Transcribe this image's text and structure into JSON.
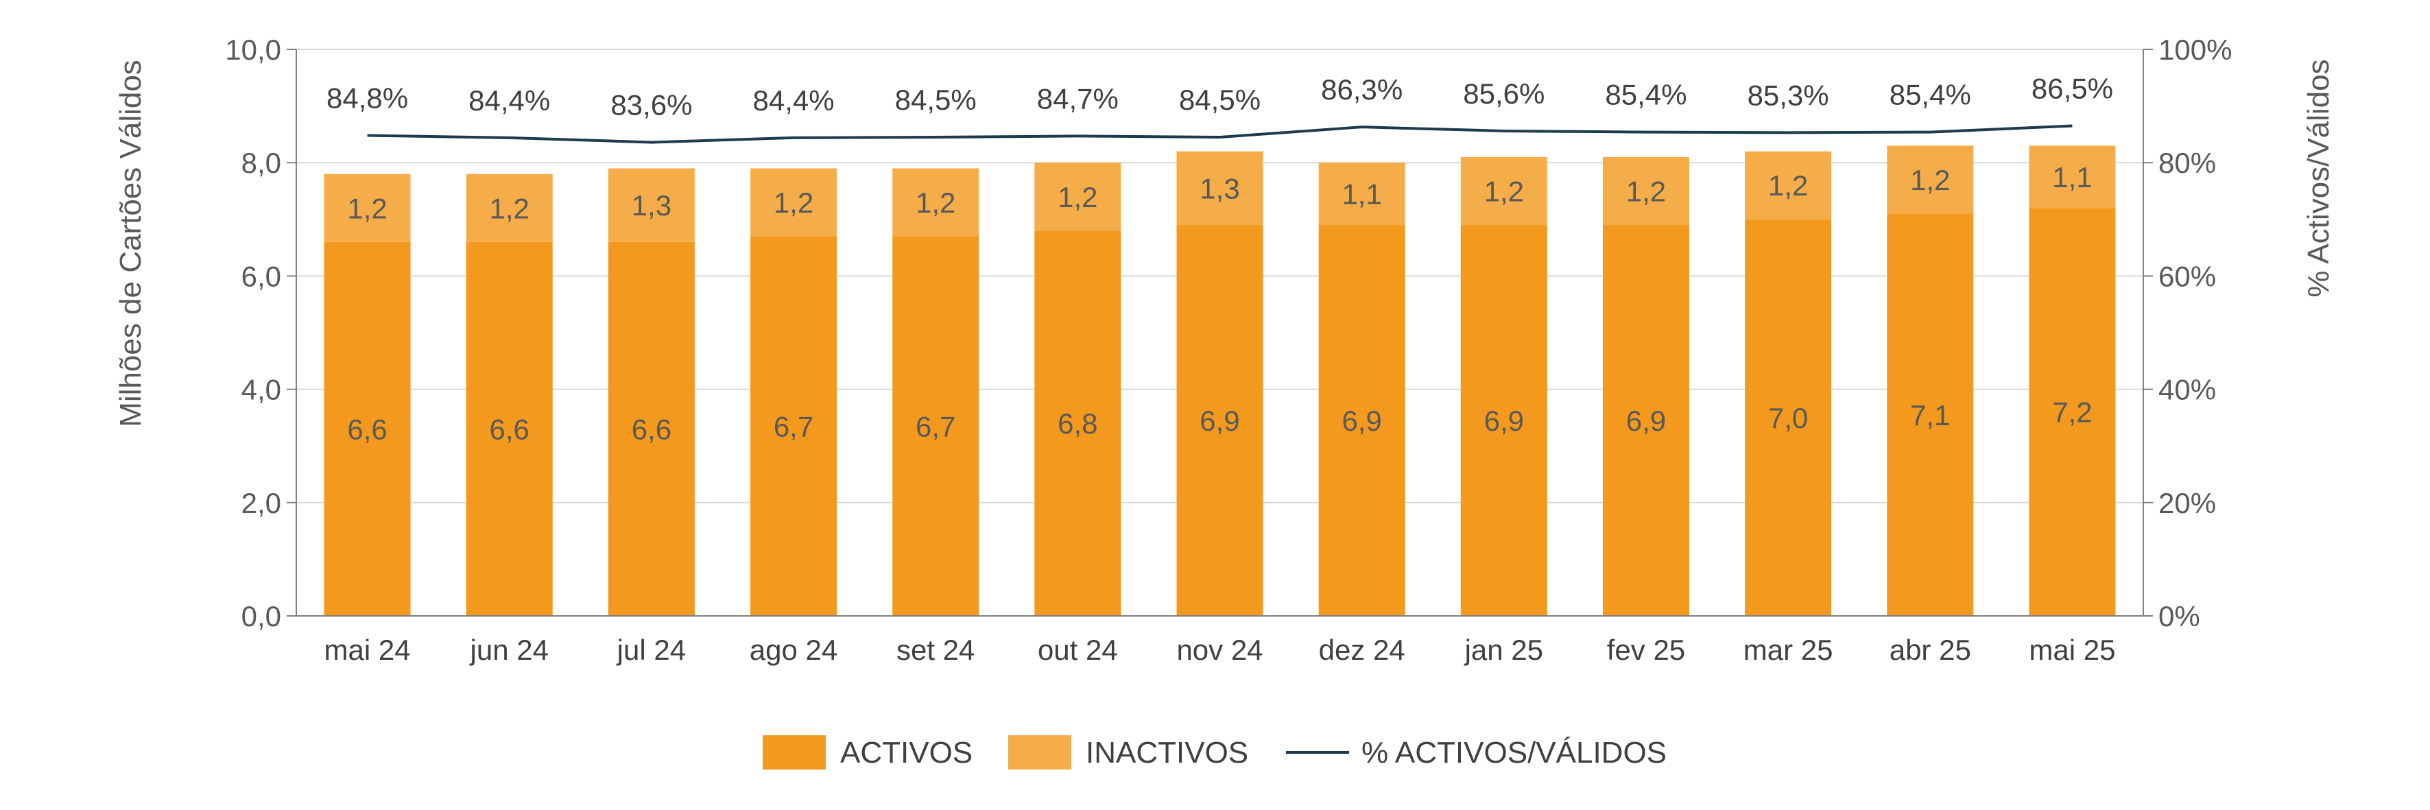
{
  "chart_data": {
    "type": "bar",
    "stacked": true,
    "categories": [
      "mai 24",
      "jun 24",
      "jul 24",
      "ago 24",
      "set 24",
      "out 24",
      "nov 24",
      "dez 24",
      "jan 25",
      "fev 25",
      "mar 25",
      "abr 25",
      "mai 25"
    ],
    "series": [
      {
        "name": "ACTIVOS",
        "type": "bar",
        "axis": "left",
        "color": "#F39A1E",
        "values": [
          6.6,
          6.6,
          6.6,
          6.7,
          6.7,
          6.8,
          6.9,
          6.9,
          6.9,
          6.9,
          7.0,
          7.1,
          7.2
        ],
        "labels": [
          "6,6",
          "6,6",
          "6,6",
          "6,7",
          "6,7",
          "6,8",
          "6,9",
          "6,9",
          "6,9",
          "6,9",
          "7,0",
          "7,1",
          "7,2"
        ]
      },
      {
        "name": "INACTIVOS",
        "type": "bar",
        "axis": "left",
        "color": "#F5AD4A",
        "values": [
          1.2,
          1.2,
          1.3,
          1.2,
          1.2,
          1.2,
          1.3,
          1.1,
          1.2,
          1.2,
          1.2,
          1.2,
          1.1
        ],
        "labels": [
          "1,2",
          "1,2",
          "1,3",
          "1,2",
          "1,2",
          "1,2",
          "1,3",
          "1,1",
          "1,2",
          "1,2",
          "1,2",
          "1,2",
          "1,1"
        ]
      },
      {
        "name": "% ACTIVOS/VÁLIDOS",
        "type": "line",
        "axis": "right",
        "color": "#1C3B4C",
        "values": [
          84.8,
          84.4,
          83.6,
          84.4,
          84.5,
          84.7,
          84.5,
          86.3,
          85.6,
          85.4,
          85.3,
          85.4,
          86.5
        ],
        "labels": [
          "84,8%",
          "84,4%",
          "83,6%",
          "84,4%",
          "84,5%",
          "84,7%",
          "84,5%",
          "86,3%",
          "85,6%",
          "85,4%",
          "85,3%",
          "85,4%",
          "86,5%"
        ]
      }
    ],
    "ylabel": "Milhões de Cartões Válidos",
    "y2label": "% Activos/Válidos",
    "ylim": [
      0,
      10
    ],
    "y2lim": [
      0,
      100
    ],
    "yticks": [
      "0,0",
      "2,0",
      "4,0",
      "6,0",
      "8,0",
      "10,0"
    ],
    "y2ticks": [
      "0%",
      "20%",
      "40%",
      "60%",
      "80%",
      "100%"
    ],
    "grid": true,
    "legend": "bottom-center"
  }
}
